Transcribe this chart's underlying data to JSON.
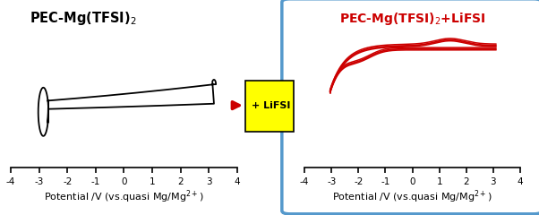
{
  "title_left": "PEC-Mg(TFSI)$_2$",
  "title_right": "PEC-Mg(TFSI)$_2$+LiFSI",
  "xlabel": "Potential /V (vs.quasi Mg/Mg$^{2+}$)",
  "xticks": [
    -4,
    -3,
    -2,
    -1,
    0,
    1,
    2,
    3,
    4
  ],
  "arrow_label": "+ LiFSI",
  "left_color": "#000000",
  "right_color": "#cc0000",
  "arrow_color": "#cc0000",
  "arrow_bg": "#ffff00",
  "box_color": "#5599cc",
  "figsize": [
    6.02,
    2.4
  ],
  "dpi": 100
}
